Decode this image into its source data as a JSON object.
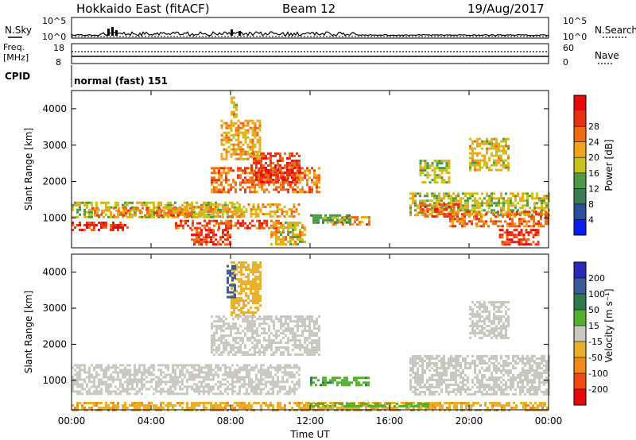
{
  "header": {
    "radar": "Hokkaido East (fitACF)",
    "beam": "Beam 12",
    "date": "19/Aug/2017"
  },
  "noise_panel": {
    "left_label": "N.Sky",
    "right_label": "N.Search",
    "ticks": [
      "10^5",
      "10^0"
    ]
  },
  "freq_panel": {
    "left_label_1": "Freq.",
    "left_label_2": "[MHz]",
    "left_ticks": [
      "18",
      "8"
    ],
    "right_label": "Nave",
    "right_ticks": [
      "60",
      "0"
    ]
  },
  "cpid_panel": {
    "label": "CPID",
    "mode": "normal (fast) 151"
  },
  "axes": {
    "ylabel": "Slant Range [km]",
    "xlabel": "Time UT",
    "y_ticks": [
      "1000",
      "2000",
      "3000",
      "4000"
    ],
    "x_ticks": [
      "00:00",
      "04:00",
      "08:00",
      "12:00",
      "16:00",
      "20:00",
      "00:00"
    ]
  },
  "power_scale": {
    "label": "Power [dB]",
    "ticks": [
      "4",
      "8",
      "12",
      "16",
      "20",
      "24",
      "28"
    ],
    "colors": [
      "#0b1cf0",
      "#2a4f9e",
      "#3c7c55",
      "#4a9a48",
      "#c8c21c",
      "#f0a41a",
      "#f06a12",
      "#e83012",
      "#e80a0a"
    ]
  },
  "velocity_scale": {
    "label": "Velocity [m s⁻¹]",
    "ticks": [
      "200",
      "100",
      "50",
      "15",
      "-15",
      "-50",
      "-100",
      "-200"
    ],
    "colors": [
      "#2a2ab8",
      "#3a5a9a",
      "#2f7a4a",
      "#55b02e",
      "#c8c8c0",
      "#e8b02a",
      "#f08a1a",
      "#f04a12",
      "#e80a0a"
    ]
  },
  "chart_data": {
    "type": "heatmap",
    "x_range_hours": [
      0,
      24
    ],
    "y_range_km": [
      180,
      4500
    ],
    "power_regions": [
      {
        "t0": 0,
        "t1": 2.8,
        "r0": 700,
        "r1": 900,
        "value": 28
      },
      {
        "t0": 0,
        "t1": 8.5,
        "r0": 1000,
        "r1": 1450,
        "value": 16
      },
      {
        "t0": 1,
        "t1": 6,
        "r0": 1100,
        "r1": 1300,
        "value": 22
      },
      {
        "t0": 5.5,
        "t1": 11.5,
        "r0": 1050,
        "r1": 1400,
        "value": 20
      },
      {
        "t0": 5.2,
        "t1": 10.5,
        "r0": 700,
        "r1": 950,
        "value": 26
      },
      {
        "t0": 6,
        "t1": 8,
        "r0": 250,
        "r1": 700,
        "value": 28
      },
      {
        "t0": 7,
        "t1": 12.5,
        "r0": 1700,
        "r1": 2400,
        "value": 24
      },
      {
        "t0": 9,
        "t1": 11.5,
        "r0": 2000,
        "r1": 2800,
        "value": 28
      },
      {
        "t0": 7.5,
        "t1": 9.5,
        "r0": 2600,
        "r1": 3700,
        "value": 20
      },
      {
        "t0": 8,
        "t1": 8.3,
        "r0": 3800,
        "r1": 4400,
        "value": 16
      },
      {
        "t0": 10,
        "t1": 11.8,
        "r0": 300,
        "r1": 900,
        "value": 18
      },
      {
        "t0": 13,
        "t1": 15,
        "r0": 850,
        "r1": 1050,
        "value": 22
      },
      {
        "t0": 12,
        "t1": 14,
        "r0": 900,
        "r1": 1100,
        "value": 12
      },
      {
        "t0": 17,
        "t1": 24,
        "r0": 1100,
        "r1": 1700,
        "value": 16
      },
      {
        "t0": 17.5,
        "t1": 19.5,
        "r0": 1050,
        "r1": 1400,
        "value": 26
      },
      {
        "t0": 19,
        "t1": 24,
        "r0": 800,
        "r1": 1200,
        "value": 24
      },
      {
        "t0": 21.5,
        "t1": 23.5,
        "r0": 300,
        "r1": 700,
        "value": 28
      },
      {
        "t0": 17.5,
        "t1": 19,
        "r0": 2000,
        "r1": 2600,
        "value": 16
      },
      {
        "t0": 20,
        "t1": 22,
        "r0": 2300,
        "r1": 3200,
        "value": 18
      }
    ],
    "velocity_regions": [
      {
        "t0": 0,
        "t1": 11.5,
        "r0": 600,
        "r1": 1450,
        "value": 0
      },
      {
        "t0": 7,
        "t1": 12.5,
        "r0": 1700,
        "r1": 2800,
        "value": 0
      },
      {
        "t0": 8,
        "t1": 9.5,
        "r0": 2800,
        "r1": 4300,
        "value": -30
      },
      {
        "t0": 7.8,
        "t1": 8.2,
        "r0": 3300,
        "r1": 4200,
        "value": 120
      },
      {
        "t0": 12,
        "t1": 15,
        "r0": 850,
        "r1": 1100,
        "value": 40
      },
      {
        "t0": 17,
        "t1": 24,
        "r0": 600,
        "r1": 1700,
        "value": 0
      },
      {
        "t0": 20,
        "t1": 22,
        "r0": 2200,
        "r1": 3200,
        "value": 0
      },
      {
        "t0": 0,
        "t1": 24,
        "r0": 200,
        "r1": 400,
        "value": -40
      },
      {
        "t0": 12,
        "t1": 18,
        "r0": 250,
        "r1": 380,
        "value": 30
      }
    ]
  }
}
